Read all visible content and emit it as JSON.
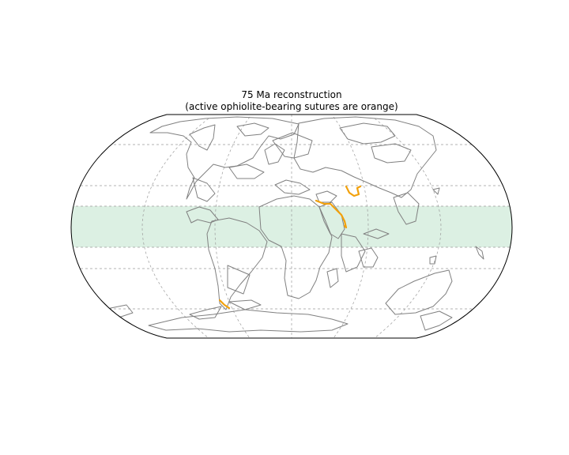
{
  "map": {
    "title_line1": "75 Ma reconstruction",
    "title_line2": "(active ophiolite-bearing sutures are orange)",
    "projection": "Robinson",
    "graticule": {
      "style": "dashed",
      "color": "#9a9a9a"
    },
    "tropical_band": {
      "color": "#dcf0e3",
      "lat_range": [
        -15,
        15
      ]
    },
    "coastline_color": "#808080",
    "suture_color": "#f2a10c"
  }
}
